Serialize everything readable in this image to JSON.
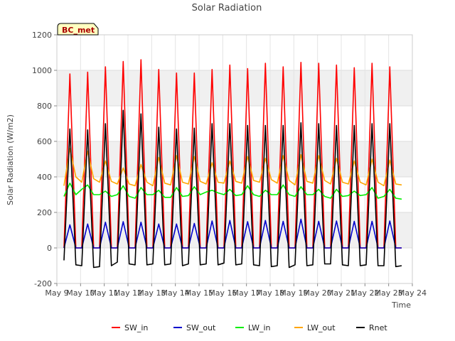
{
  "chart_data": {
    "type": "line",
    "title": "Solar Radiation",
    "badge": "BC_met",
    "xlabel": "Time",
    "ylabel": "Solar Radiation (W/m2)",
    "ylim": [
      -200,
      1200
    ],
    "yticks": [
      -200,
      0,
      200,
      400,
      600,
      800,
      1000,
      1200
    ],
    "xlim": [
      9,
      24
    ],
    "xticks": [
      {
        "x": 9,
        "label": "May 9"
      },
      {
        "x": 10,
        "label": "May 10"
      },
      {
        "x": 11,
        "label": "May 11"
      },
      {
        "x": 12,
        "label": "May 12"
      },
      {
        "x": 13,
        "label": "May 13"
      },
      {
        "x": 14,
        "label": "May 14"
      },
      {
        "x": 15,
        "label": "May 15"
      },
      {
        "x": 16,
        "label": "May 16"
      },
      {
        "x": 17,
        "label": "May 17"
      },
      {
        "x": 18,
        "label": "May 18"
      },
      {
        "x": 19,
        "label": "May 19"
      },
      {
        "x": 20,
        "label": "May 20"
      },
      {
        "x": 21,
        "label": "May 21"
      },
      {
        "x": 22,
        "label": "May 22"
      },
      {
        "x": 23,
        "label": "May 23"
      },
      {
        "x": 24,
        "label": "May 24"
      }
    ],
    "grid": true,
    "legend_position": "bottom",
    "series": [
      {
        "name": "SW_in",
        "color": "#ff0000",
        "x": [
          9.3,
          9.55,
          9.8,
          10.05,
          10.3,
          10.55,
          10.8,
          11.05,
          11.3,
          11.55,
          11.8,
          12.05,
          12.3,
          12.55,
          12.8,
          13.05,
          13.3,
          13.55,
          13.8,
          14.05,
          14.3,
          14.55,
          14.8,
          15.05,
          15.3,
          15.55,
          15.8,
          16.05,
          16.3,
          16.55,
          16.8,
          17.05,
          17.3,
          17.55,
          17.8,
          18.05,
          18.3,
          18.55,
          18.8,
          19.05,
          19.3,
          19.55,
          19.8,
          20.05,
          20.3,
          20.55,
          20.8,
          21.05,
          21.3,
          21.55,
          21.8,
          22.05,
          22.3,
          22.55,
          22.8,
          23.05,
          23.3,
          23.55
        ],
        "y": [
          0,
          980,
          0,
          0,
          990,
          0,
          0,
          1020,
          0,
          0,
          1050,
          0,
          0,
          1060,
          0,
          0,
          1005,
          0,
          0,
          985,
          0,
          0,
          985,
          0,
          0,
          1005,
          0,
          0,
          1030,
          0,
          0,
          1010,
          0,
          0,
          1040,
          0,
          0,
          1020,
          0,
          0,
          1045,
          0,
          0,
          1040,
          0,
          0,
          1030,
          0,
          0,
          1015,
          0,
          0,
          1040,
          0,
          0,
          1020,
          0,
          0
        ]
      },
      {
        "name": "SW_out",
        "color": "#0000cc",
        "x": [
          9.3,
          9.55,
          9.8,
          10.05,
          10.3,
          10.55,
          10.8,
          11.05,
          11.3,
          11.55,
          11.8,
          12.05,
          12.3,
          12.55,
          12.8,
          13.05,
          13.3,
          13.55,
          13.8,
          14.05,
          14.3,
          14.55,
          14.8,
          15.05,
          15.3,
          15.55,
          15.8,
          16.05,
          16.3,
          16.55,
          16.8,
          17.05,
          17.3,
          17.55,
          17.8,
          18.05,
          18.3,
          18.55,
          18.8,
          19.05,
          19.3,
          19.55,
          19.8,
          20.05,
          20.3,
          20.55,
          20.8,
          21.05,
          21.3,
          21.55,
          21.8,
          22.05,
          22.3,
          22.55,
          22.8,
          23.05,
          23.3,
          23.55
        ],
        "y": [
          0,
          130,
          0,
          0,
          135,
          0,
          0,
          145,
          0,
          0,
          148,
          0,
          0,
          145,
          0,
          0,
          135,
          0,
          0,
          135,
          0,
          0,
          138,
          0,
          0,
          152,
          0,
          0,
          155,
          0,
          0,
          148,
          0,
          0,
          155,
          0,
          0,
          150,
          0,
          0,
          162,
          0,
          0,
          150,
          0,
          0,
          152,
          0,
          0,
          150,
          0,
          0,
          150,
          0,
          0,
          152,
          0,
          0
        ]
      },
      {
        "name": "LW_in",
        "color": "#00ee00",
        "x": [
          9.3,
          9.55,
          9.8,
          10.05,
          10.3,
          10.55,
          10.8,
          11.05,
          11.3,
          11.55,
          11.8,
          12.05,
          12.3,
          12.55,
          12.8,
          13.05,
          13.3,
          13.55,
          13.8,
          14.05,
          14.3,
          14.55,
          14.8,
          15.05,
          15.3,
          15.55,
          15.8,
          16.05,
          16.3,
          16.55,
          16.8,
          17.05,
          17.3,
          17.55,
          17.8,
          18.05,
          18.3,
          18.55,
          18.8,
          19.05,
          19.3,
          19.55,
          19.8,
          20.05,
          20.3,
          20.55,
          20.8,
          21.05,
          21.3,
          21.55,
          21.8,
          22.05,
          22.3,
          22.55,
          22.8,
          23.05,
          23.3,
          23.55
        ],
        "y": [
          290,
          365,
          300,
          330,
          355,
          300,
          300,
          320,
          290,
          300,
          350,
          290,
          280,
          340,
          300,
          300,
          325,
          285,
          285,
          340,
          290,
          295,
          345,
          300,
          315,
          325,
          310,
          300,
          330,
          295,
          300,
          350,
          300,
          290,
          325,
          300,
          300,
          355,
          300,
          290,
          345,
          300,
          300,
          330,
          290,
          280,
          330,
          290,
          295,
          320,
          295,
          300,
          340,
          280,
          290,
          330,
          280,
          275
        ]
      },
      {
        "name": "LW_out",
        "color": "#ffa500",
        "x": [
          9.3,
          9.55,
          9.8,
          10.05,
          10.3,
          10.55,
          10.8,
          11.05,
          11.3,
          11.55,
          11.8,
          12.05,
          12.3,
          12.55,
          12.8,
          13.05,
          13.3,
          13.55,
          13.8,
          14.05,
          14.3,
          14.55,
          14.8,
          15.05,
          15.3,
          15.55,
          15.8,
          16.05,
          16.3,
          16.55,
          16.8,
          17.05,
          17.3,
          17.55,
          17.8,
          18.05,
          18.3,
          18.55,
          18.8,
          19.05,
          19.3,
          19.55,
          19.8,
          20.05,
          20.3,
          20.55,
          20.8,
          21.05,
          21.3,
          21.55,
          21.8,
          22.05,
          22.3,
          22.55,
          22.8,
          23.05,
          23.3,
          23.55
        ],
        "y": [
          350,
          560,
          400,
          370,
          545,
          390,
          370,
          490,
          375,
          360,
          450,
          360,
          350,
          470,
          370,
          350,
          510,
          365,
          355,
          520,
          370,
          360,
          515,
          375,
          360,
          480,
          370,
          365,
          490,
          375,
          365,
          515,
          380,
          370,
          505,
          385,
          365,
          520,
          380,
          355,
          525,
          375,
          365,
          520,
          380,
          360,
          505,
          370,
          360,
          490,
          370,
          355,
          500,
          370,
          350,
          495,
          360,
          355
        ]
      },
      {
        "name": "Rnet",
        "color": "#000000",
        "x": [
          9.3,
          9.55,
          9.8,
          10.05,
          10.3,
          10.55,
          10.8,
          11.05,
          11.3,
          11.55,
          11.8,
          12.05,
          12.3,
          12.55,
          12.8,
          13.05,
          13.3,
          13.55,
          13.8,
          14.05,
          14.3,
          14.55,
          14.8,
          15.05,
          15.3,
          15.55,
          15.8,
          16.05,
          16.3,
          16.55,
          16.8,
          17.05,
          17.3,
          17.55,
          17.8,
          18.05,
          18.3,
          18.55,
          18.8,
          19.05,
          19.3,
          19.55,
          19.8,
          20.05,
          20.3,
          20.55,
          20.8,
          21.05,
          21.3,
          21.55,
          21.8,
          22.05,
          22.3,
          22.55,
          22.8,
          23.05,
          23.3,
          23.55
        ],
        "y": [
          -70,
          670,
          -95,
          -100,
          665,
          -110,
          -105,
          700,
          -100,
          -80,
          775,
          -90,
          -95,
          755,
          -95,
          -90,
          680,
          -95,
          -90,
          670,
          -100,
          -90,
          675,
          -95,
          -90,
          700,
          -95,
          -85,
          700,
          -95,
          -90,
          690,
          -95,
          -100,
          690,
          -105,
          -100,
          690,
          -110,
          -95,
          705,
          -100,
          -95,
          700,
          -90,
          -90,
          690,
          -95,
          -100,
          690,
          -100,
          -95,
          700,
          -100,
          -100,
          700,
          -105,
          -100
        ]
      }
    ]
  }
}
